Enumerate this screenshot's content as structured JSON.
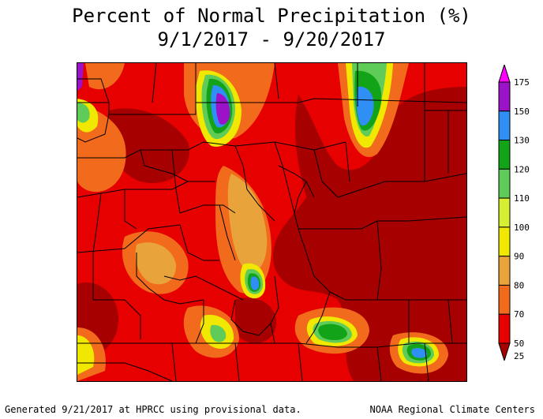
{
  "title_line1": "Percent of Normal Precipitation (%)",
  "title_line2": "9/1/2017 - 9/20/2017",
  "footer_left": "Generated 9/21/2017 at HPRCC using provisional data.",
  "footer_right": "NOAA Regional Climate Centers",
  "legend": [
    {
      "label": "175",
      "color": "#ff00ff"
    },
    {
      "label": "150",
      "color": "#9b12c9"
    },
    {
      "label": "130",
      "color": "#2f8ff4"
    },
    {
      "label": "120",
      "color": "#13a319"
    },
    {
      "label": "110",
      "color": "#5fcc59"
    },
    {
      "label": "100",
      "color": "#d7ef32"
    },
    {
      "label": "90",
      "color": "#f0e800"
    },
    {
      "label": "80",
      "color": "#e9a33b"
    },
    {
      "label": "70",
      "color": "#f26b1d"
    },
    {
      "label": "50",
      "color": "#e60000"
    },
    {
      "label": "25",
      "color": "#a70000"
    }
  ],
  "palette": {
    "base": "#d41513",
    "dark": "#a70000",
    "orange": "#f26b1d",
    "tan": "#e9a33b",
    "yellow": "#f0e800",
    "lightgreen": "#5fcc59",
    "green": "#13a319",
    "blue": "#2f8ff4",
    "purple": "#9b12c9",
    "magenta": "#ff00ff"
  }
}
